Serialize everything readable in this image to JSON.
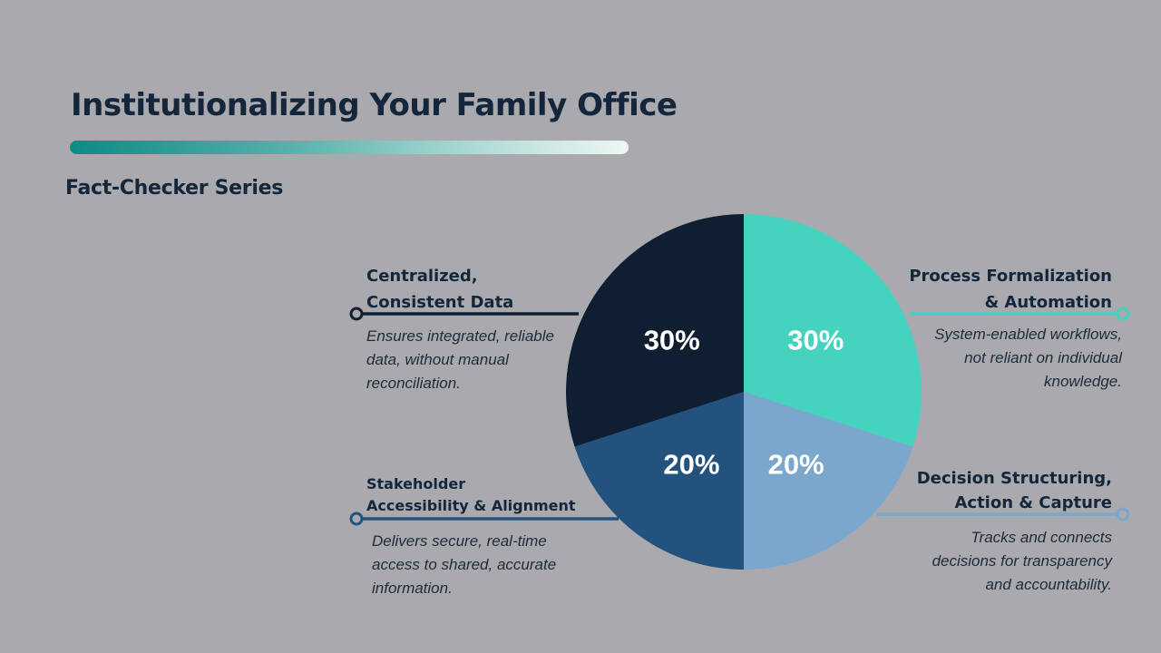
{
  "header": {
    "title": "Institutionalizing Your Family Office",
    "subtitle": "Fact-Checker Series"
  },
  "colors": {
    "navy": "#0f1f31",
    "teal": "#45d3bf",
    "light_blue": "#7ba7cd",
    "mid_blue": "#24527f",
    "text": "#13263b"
  },
  "callouts": {
    "centralized": {
      "title": "Centralized,\nConsistent Data",
      "desc": "Ensures integrated, reliable\ndata, without manual\nreconciliation."
    },
    "process": {
      "title": "Process Formalization\n& Automation",
      "desc": "System-enabled workflows,\nnot reliant on individual\nknowledge."
    },
    "stakeholder": {
      "title": "Stakeholder\nAccessibility & Alignment",
      "desc": "Delivers secure, real-time\naccess to shared, accurate\ninformation."
    },
    "decision": {
      "title": "Decision Structuring,\nAction & Capture",
      "desc": "Tracks and connects\ndecisions for transparency\nand accountability."
    }
  },
  "chart_data": {
    "type": "pie",
    "title": "",
    "start": "12 o'clock",
    "direction": "clockwise",
    "slices": [
      {
        "label": "Process Formalization & Automation",
        "value": 30,
        "display": "30%",
        "color": "#45d3bf"
      },
      {
        "label": "Decision Structuring, Action & Capture",
        "value": 20,
        "display": "20%",
        "color": "#7ba7cd"
      },
      {
        "label": "Stakeholder Accessibility & Alignment",
        "value": 20,
        "display": "20%",
        "color": "#24527f"
      },
      {
        "label": "Centralized, Consistent Data",
        "value": 30,
        "display": "30%",
        "color": "#0f1f31"
      }
    ]
  }
}
